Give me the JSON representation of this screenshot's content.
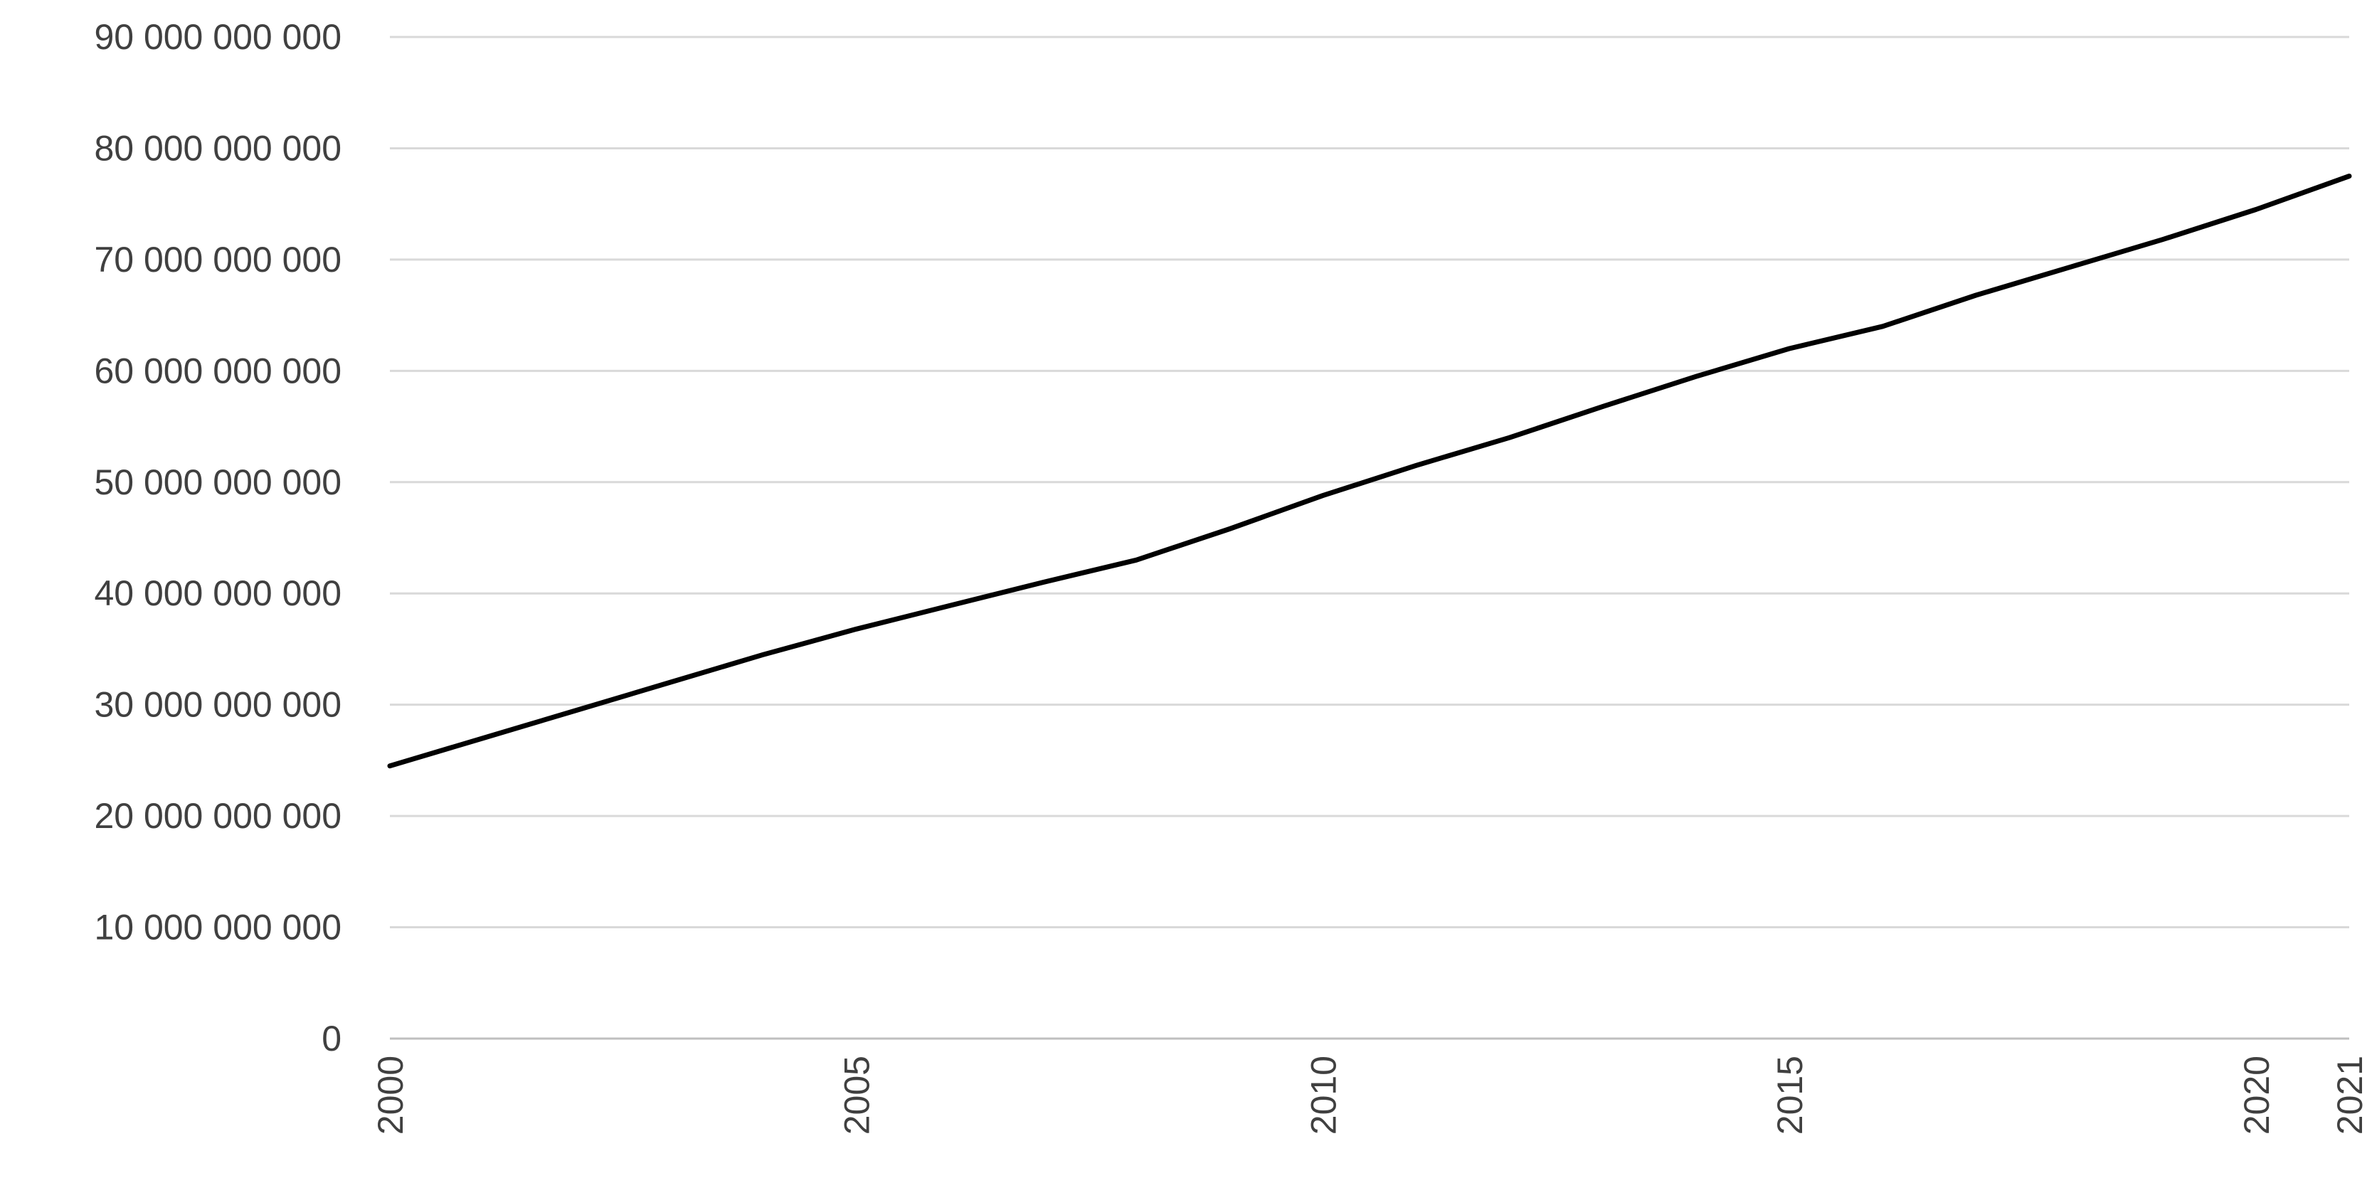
{
  "chart_data": {
    "type": "line",
    "title": "",
    "xlabel": "",
    "ylabel": "",
    "ylim": [
      0,
      90000000000
    ],
    "xlim": [
      2000,
      2021
    ],
    "grid": true,
    "y_ticks": [
      0,
      10000000000,
      20000000000,
      30000000000,
      40000000000,
      50000000000,
      60000000000,
      70000000000,
      80000000000,
      90000000000
    ],
    "y_tick_labels": [
      "0",
      "10 000 000 000",
      "20 000 000 000",
      "30 000 000 000",
      "40 000 000 000",
      "50 000 000 000",
      "60 000 000 000",
      "70 000 000 000",
      "80 000 000 000",
      "90 000 000 000"
    ],
    "x_ticks": [
      2000,
      2005,
      2010,
      2015,
      2020,
      2021
    ],
    "x_tick_labels": [
      "2000",
      "2005",
      "2010",
      "2015",
      "2020",
      "2021"
    ],
    "x": [
      2000,
      2001,
      2002,
      2003,
      2004,
      2005,
      2006,
      2007,
      2008,
      2009,
      2010,
      2011,
      2012,
      2013,
      2014,
      2015,
      2016,
      2017,
      2018,
      2019,
      2020,
      2021
    ],
    "series": [
      {
        "values": [
          24500000000,
          27000000000,
          29500000000,
          32000000000,
          34500000000,
          36800000000,
          38900000000,
          41000000000,
          43000000000,
          45800000000,
          48800000000,
          51500000000,
          54000000000,
          56800000000,
          59500000000,
          62000000000,
          64000000000,
          66800000000,
          69300000000,
          71800000000,
          74500000000,
          77500000000
        ],
        "color": "#000000"
      }
    ]
  }
}
